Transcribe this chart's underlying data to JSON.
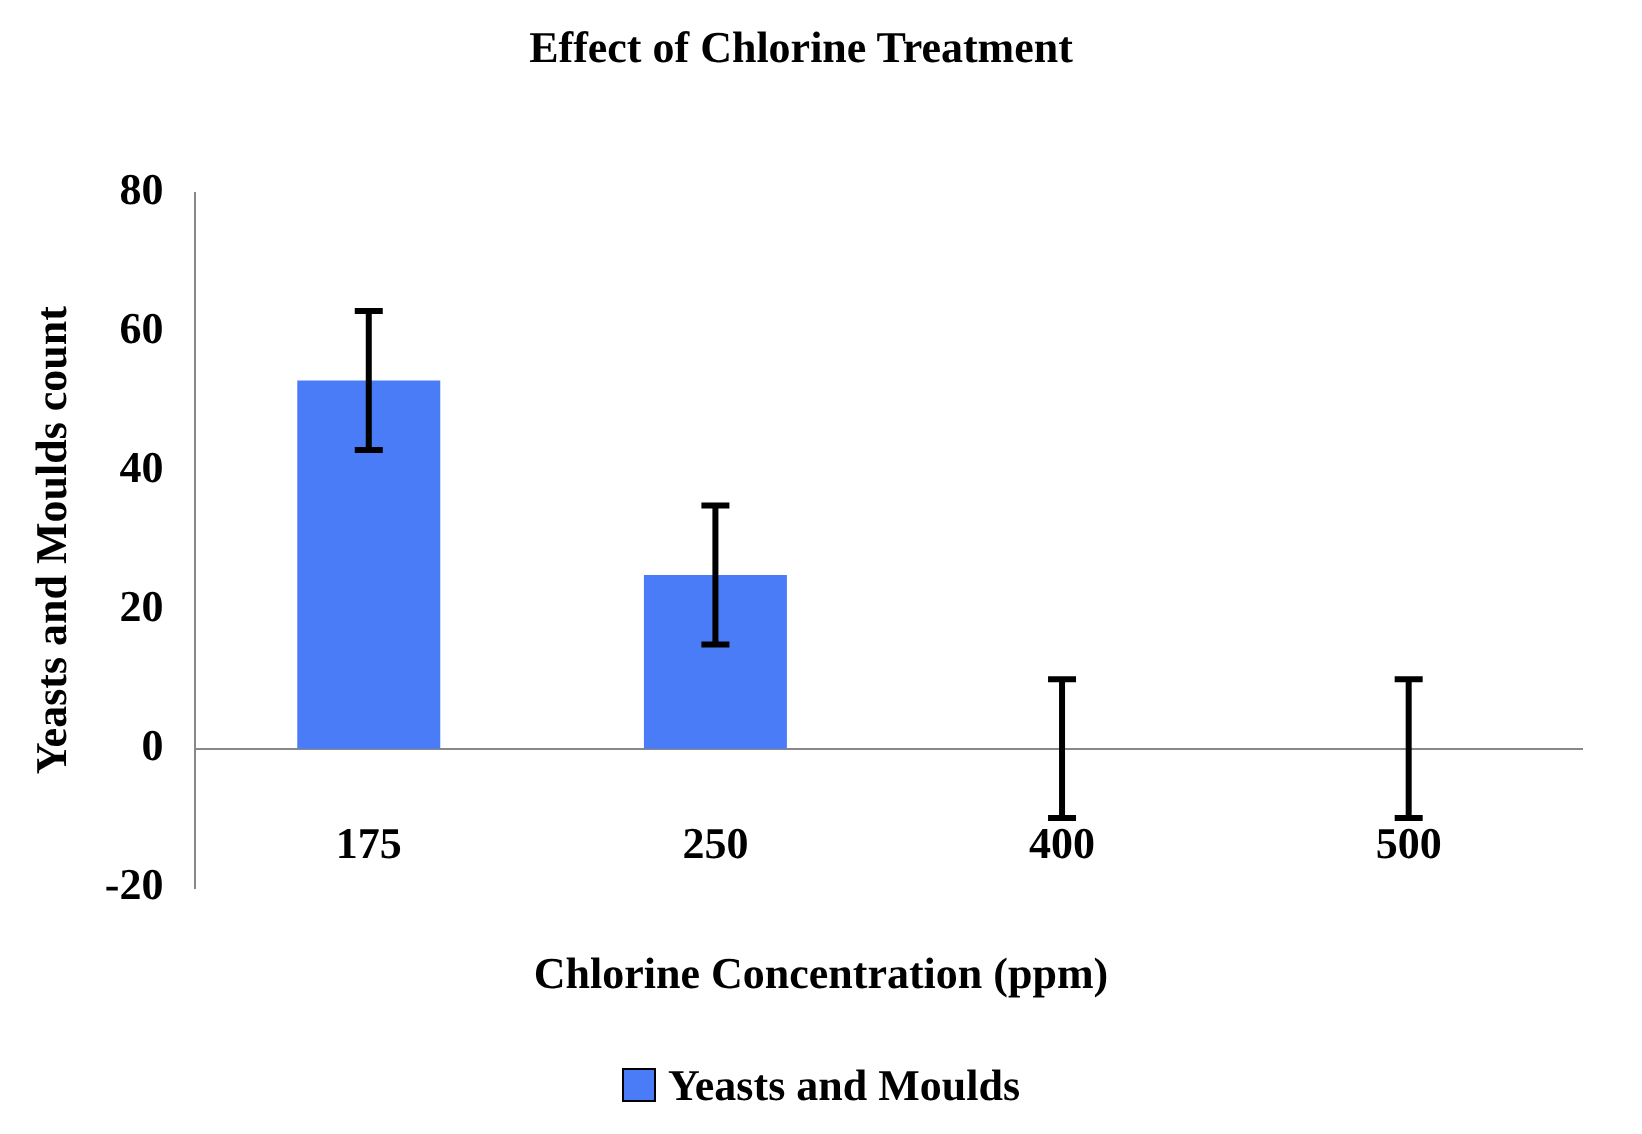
{
  "chart_data": {
    "type": "bar",
    "title": "Effect of Chlorine Treatment",
    "xlabel": "Chlorine Concentration (ppm)",
    "ylabel": "Yeasts and Moulds count",
    "categories": [
      "175",
      "250",
      "400",
      "500"
    ],
    "series": [
      {
        "name": "Yeasts and Moulds",
        "color": "#4a7cf7",
        "values": [
          53,
          25,
          0,
          0
        ],
        "errors": [
          10,
          10,
          10,
          10
        ]
      }
    ],
    "ylim": [
      -20,
      80
    ],
    "yticks": [
      -20,
      0,
      20,
      40,
      60,
      80
    ],
    "grid": false,
    "legend": "bottom"
  }
}
